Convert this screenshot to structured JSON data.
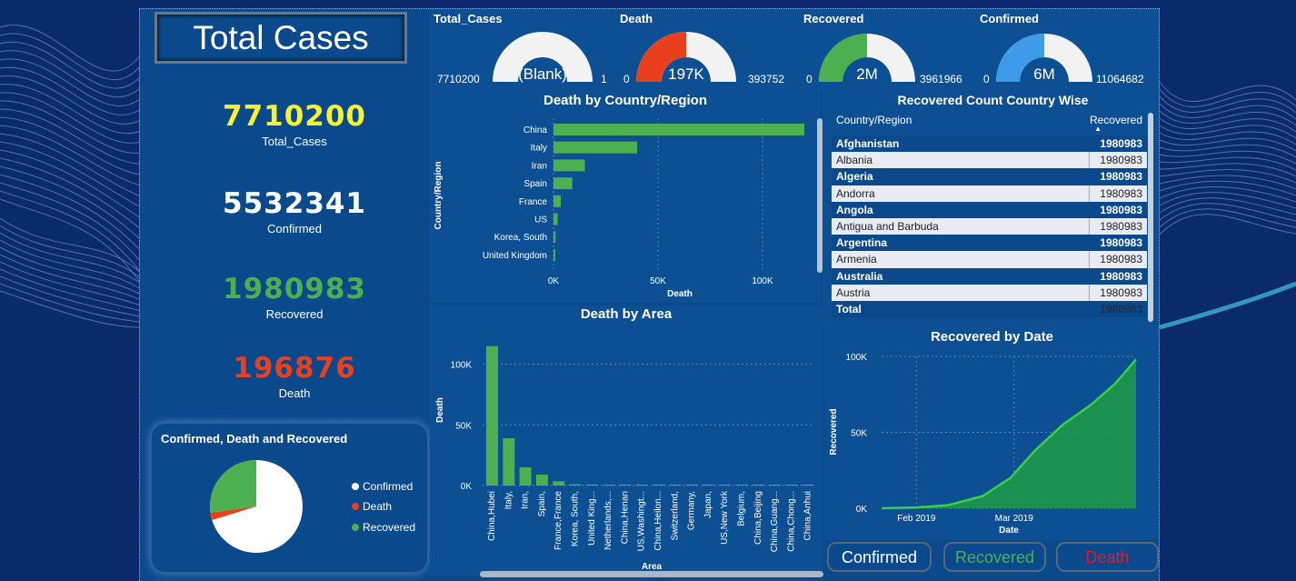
{
  "title": "Total Cases",
  "kpis": [
    {
      "value": "7710200",
      "label": "Total_Cases",
      "color": "#f4f136"
    },
    {
      "value": "5532341",
      "label": "Confirmed",
      "color": "#ffffff"
    },
    {
      "value": "1980983",
      "label": "Recovered",
      "color": "#4caf50"
    },
    {
      "value": "196876",
      "label": "Death",
      "color": "#e8401c"
    }
  ],
  "gauges": [
    {
      "label": "Total_Cases",
      "min": "7710200",
      "max": "1",
      "value": "(Blank)",
      "fill": 0,
      "color": "#ffffff"
    },
    {
      "label": "Death",
      "min": "0",
      "max": "393752",
      "value": "197K",
      "fill": 0.5,
      "color": "#e8401c"
    },
    {
      "label": "Recovered",
      "min": "0",
      "max": "3961966",
      "value": "2M",
      "fill": 0.5,
      "color": "#4caf50"
    },
    {
      "label": "Confirmed",
      "min": "0",
      "max": "11064682",
      "value": "6M",
      "fill": 0.5,
      "color": "#3d9be9"
    }
  ],
  "pie": {
    "title": "Confirmed, Death and Recovered",
    "legend": [
      {
        "name": "Confirmed",
        "color": "#ffffff"
      },
      {
        "name": "Death",
        "color": "#e8401c"
      },
      {
        "name": "Recovered",
        "color": "#4caf50"
      }
    ]
  },
  "table": {
    "title": "Recovered Count Country Wise",
    "col1": "Country/Region",
    "col2": "Recovered",
    "rows": [
      {
        "country": "Afghanistan",
        "value": "1980983"
      },
      {
        "country": "Albania",
        "value": "1980983"
      },
      {
        "country": "Algeria",
        "value": "1980983"
      },
      {
        "country": "Andorra",
        "value": "1980983"
      },
      {
        "country": "Angola",
        "value": "1980983"
      },
      {
        "country": "Antigua and Barbuda",
        "value": "1980983"
      },
      {
        "country": "Argentina",
        "value": "1980983"
      },
      {
        "country": "Armenia",
        "value": "1980983"
      },
      {
        "country": "Australia",
        "value": "1980983"
      },
      {
        "country": "Austria",
        "value": "1980983"
      }
    ],
    "total_label": "Total",
    "total_value": "1980983"
  },
  "buttons": [
    {
      "label": "Confirmed",
      "color": "#ffffff"
    },
    {
      "label": "Recovered",
      "color": "#4caf50"
    },
    {
      "label": "Death",
      "color": "#e8192c"
    }
  ],
  "chart_data": [
    {
      "type": "bar",
      "orientation": "horizontal",
      "title": "Death by Country/Region",
      "xlabel": "Death",
      "ylabel": "Country/Region",
      "categories": [
        "China",
        "Italy",
        "Iran",
        "Spain",
        "France",
        "US",
        "Korea, South",
        "United Kingdom"
      ],
      "values": [
        120000,
        40000,
        15000,
        9000,
        3500,
        2000,
        1000,
        800
      ],
      "xticks": [
        "0K",
        "50K",
        "100K"
      ],
      "xlim": [
        0,
        120000
      ],
      "color": "#4caf50"
    },
    {
      "type": "bar",
      "title": "Death by Area",
      "xlabel": "Area",
      "ylabel": "Death",
      "categories": [
        "China,Hubei",
        "Italy,",
        "Iran,",
        "Spain,",
        "France,France",
        "Korea, South,",
        "United King...",
        "Netherlands,...",
        "China,Henan",
        "US,Washingt...",
        "China,Heilon...",
        "Switzerland,",
        "Germany,",
        "Japan,",
        "US,New York",
        "Belgium,",
        "China,Beijing",
        "China,Guang...",
        "China,Chong...",
        "China,Anhui"
      ],
      "values": [
        115000,
        39000,
        15000,
        9000,
        3500,
        1000,
        800,
        600,
        500,
        400,
        350,
        300,
        250,
        200,
        180,
        150,
        120,
        100,
        90,
        80
      ],
      "yticks": [
        "0K",
        "50K",
        "100K"
      ],
      "ylim": [
        0,
        120000
      ],
      "color": "#4caf50"
    },
    {
      "type": "area",
      "title": "Recovered by Date",
      "xlabel": "Date",
      "ylabel": "Recovered",
      "x": [
        "2019-01-22",
        "2019-02-01",
        "2019-02-10",
        "2019-02-20",
        "2019-02-28",
        "2019-03-07",
        "2019-03-15",
        "2019-03-23",
        "2019-03-30",
        "2019-04-05"
      ],
      "values": [
        0,
        500,
        2000,
        8000,
        20000,
        38000,
        55000,
        68000,
        82000,
        98000
      ],
      "xticks": [
        "Feb 2019",
        "Mar 2019"
      ],
      "yticks": [
        "0K",
        "50K",
        "100K"
      ],
      "ylim": [
        0,
        100000
      ],
      "color": "#1e9b45"
    }
  ]
}
